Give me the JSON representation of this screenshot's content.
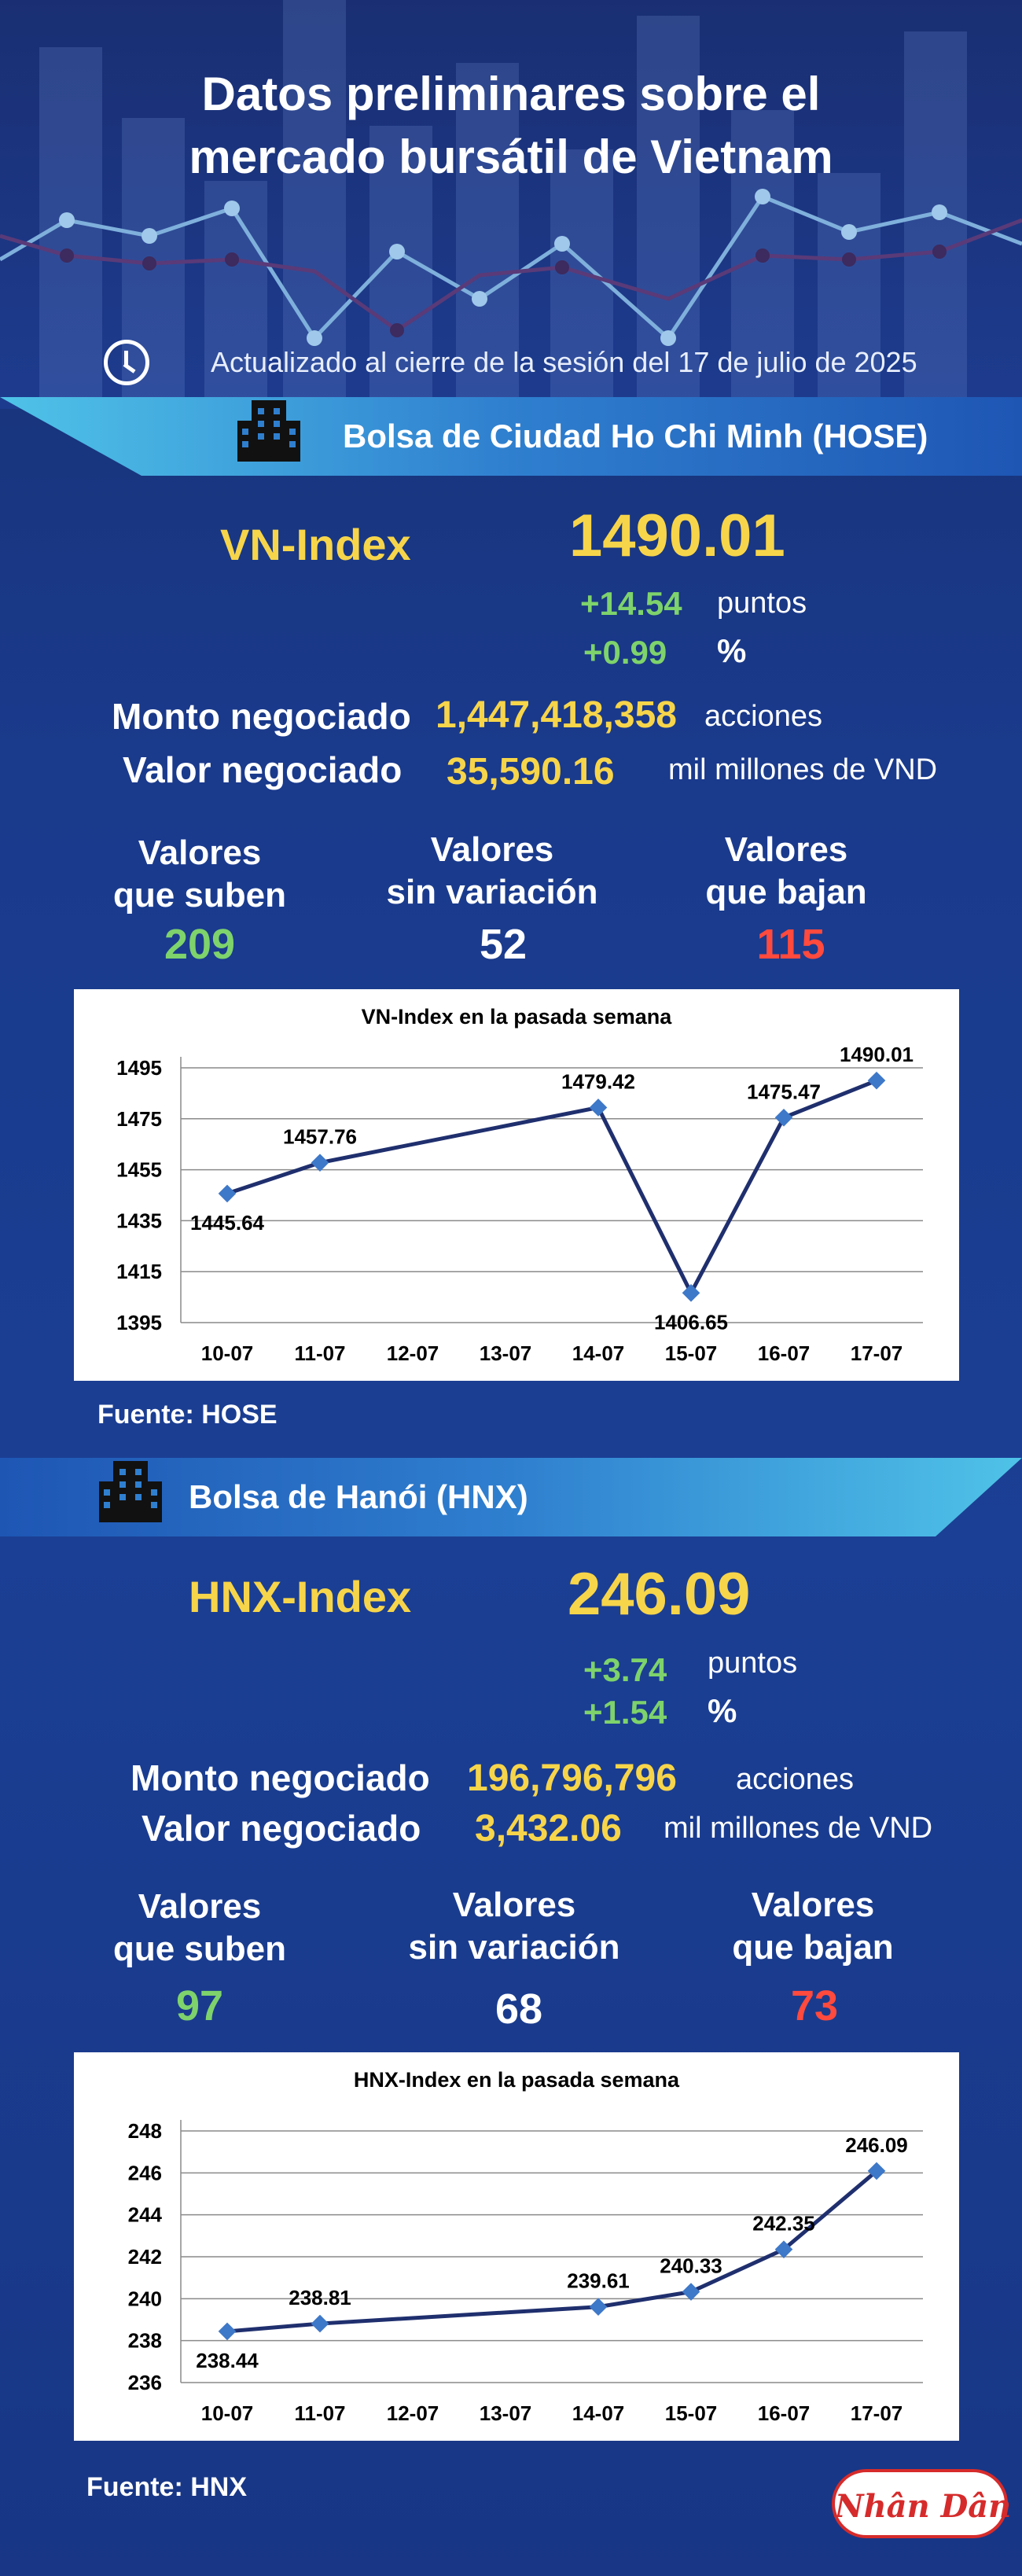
{
  "title_lines": [
    "Datos preliminares sobre el",
    "mercado bursátil de Vietnam"
  ],
  "updated": "Actualizado al cierre de la sesión del 17 de julio de 2025",
  "icons": {
    "clock": "clock-icon",
    "building": "building-icon"
  },
  "colors": {
    "gold": "#f7d54a",
    "green": "#7ed36b",
    "red": "#ff4a3d",
    "line": "#1f2f6e",
    "marker": "#3e78c8"
  },
  "hose": {
    "banner": "Bolsa de Ciudad Ho Chi Minh (HOSE)",
    "index_name": "VN-Index",
    "index_value": "1490.01",
    "change_points": "+14.54",
    "points_label": "puntos",
    "change_pct": "+0.99",
    "pct_label": "%",
    "volume_label": "Monto negociado",
    "volume_value": "1,447,418,358",
    "volume_unit": "acciones",
    "value_label": "Valor negociado",
    "value_value": "35,590.16",
    "value_unit": "mil millones de VND",
    "up_label_1": "Valores",
    "up_label_2": "que suben",
    "up_count": "209",
    "same_label_1": "Valores",
    "same_label_2": "sin variación",
    "same_count": "52",
    "down_label_1": "Valores",
    "down_label_2": "que bajan",
    "down_count": "115",
    "source": "Fuente: HOSE"
  },
  "hnx": {
    "banner": "Bolsa de Hanói (HNX)",
    "index_name": "HNX-Index",
    "index_value": "246.09",
    "change_points": "+3.74",
    "points_label": "puntos",
    "change_pct": "+1.54",
    "pct_label": "%",
    "volume_label": "Monto negociado",
    "volume_value": "196,796,796",
    "volume_unit": "acciones",
    "value_label": "Valor negociado",
    "value_value": "3,432.06",
    "value_unit": "mil millones de VND",
    "up_label_1": "Valores",
    "up_label_2": "que suben",
    "up_count": "97",
    "same_label_1": "Valores",
    "same_label_2": "sin variación",
    "same_count": "68",
    "down_label_1": "Valores",
    "down_label_2": "que bajan",
    "down_count": "73",
    "source": "Fuente:  HNX"
  },
  "logo_text": "Nhân Dân",
  "chart_data": [
    {
      "type": "line",
      "title": "VN-Index en la pasada semana",
      "categories": [
        "10-07",
        "11-07",
        "12-07",
        "13-07",
        "14-07",
        "15-07",
        "16-07",
        "17-07"
      ],
      "points": [
        {
          "x": "10-07",
          "y": 1445.64
        },
        {
          "x": "11-07",
          "y": 1457.76
        },
        {
          "x": "14-07",
          "y": 1479.42
        },
        {
          "x": "15-07",
          "y": 1406.65
        },
        {
          "x": "16-07",
          "y": 1475.47
        },
        {
          "x": "17-07",
          "y": 1490.01
        }
      ],
      "label_positions": [
        "below",
        "above",
        "above",
        "below",
        "above",
        "above"
      ],
      "yticks": [
        1395,
        1415,
        1435,
        1455,
        1475,
        1495
      ],
      "ylim": [
        1395,
        1495
      ],
      "grid": true
    },
    {
      "type": "line",
      "title": "HNX-Index en la pasada semana",
      "categories": [
        "10-07",
        "11-07",
        "12-07",
        "13-07",
        "14-07",
        "15-07",
        "16-07",
        "17-07"
      ],
      "points": [
        {
          "x": "10-07",
          "y": 238.44
        },
        {
          "x": "11-07",
          "y": 238.81
        },
        {
          "x": "14-07",
          "y": 239.61
        },
        {
          "x": "15-07",
          "y": 240.33
        },
        {
          "x": "16-07",
          "y": 242.35
        },
        {
          "x": "17-07",
          "y": 246.09
        }
      ],
      "label_positions": [
        "below",
        "above",
        "above",
        "above",
        "above",
        "above"
      ],
      "yticks": [
        236,
        238,
        240,
        242,
        244,
        246,
        248
      ],
      "ylim": [
        236,
        248
      ],
      "grid": true
    }
  ]
}
